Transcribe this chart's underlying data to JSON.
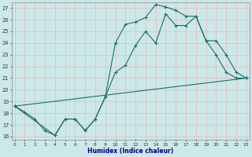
{
  "xlabel": "Humidex (Indice chaleur)",
  "background_color": "#cce8e8",
  "grid_color": "#e8b8b8",
  "line_color": "#1a6e6e",
  "xlim": [
    0,
    23
  ],
  "ylim": [
    16,
    27
  ],
  "yticks": [
    16,
    17,
    18,
    19,
    20,
    21,
    22,
    23,
    24,
    25,
    26,
    27
  ],
  "xticks": [
    0,
    1,
    2,
    3,
    4,
    5,
    6,
    7,
    8,
    9,
    10,
    11,
    12,
    13,
    14,
    15,
    16,
    17,
    18,
    19,
    20,
    21,
    22,
    23
  ],
  "line1_x": [
    0,
    1,
    2,
    3,
    4,
    5,
    6,
    7,
    8,
    9,
    10,
    11,
    12,
    13,
    14,
    15,
    16,
    17,
    18,
    19,
    20,
    21,
    22,
    23
  ],
  "line1_y": [
    18.6,
    18.1,
    17.5,
    16.5,
    16.1,
    17.5,
    17.5,
    16.5,
    17.5,
    19.4,
    24.0,
    25.6,
    25.8,
    26.2,
    27.3,
    27.1,
    26.8,
    26.3,
    26.3,
    24.2,
    23.0,
    21.5,
    21.0,
    21.0
  ],
  "line2_x": [
    0,
    4,
    5,
    6,
    7,
    8,
    9,
    10,
    11,
    12,
    13,
    14,
    15,
    16,
    17,
    18,
    19,
    20,
    21,
    22,
    23
  ],
  "line2_y": [
    18.6,
    16.1,
    17.5,
    17.5,
    16.5,
    17.5,
    19.4,
    21.5,
    22.1,
    23.8,
    25.0,
    24.0,
    26.5,
    25.5,
    25.5,
    26.3,
    24.2,
    24.2,
    23.0,
    21.5,
    21.0
  ],
  "line3_x": [
    0,
    23
  ],
  "line3_y": [
    18.6,
    21.0
  ]
}
